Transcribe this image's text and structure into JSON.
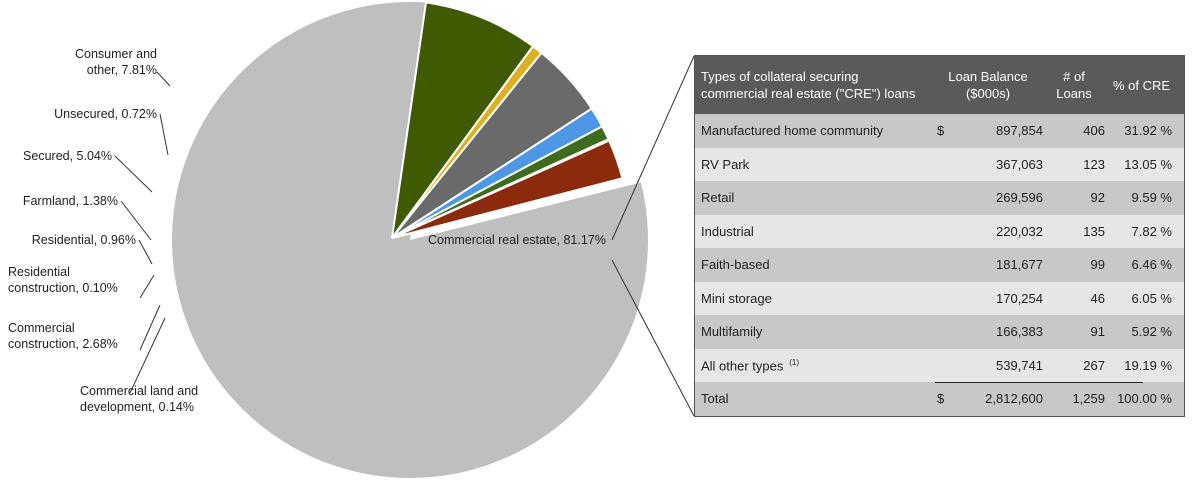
{
  "chart_data": [
    {
      "type": "pie",
      "title": "",
      "slices": [
        {
          "label": "Commercial real estate, 81.17%",
          "value": 81.17,
          "color": "#bfbfbf",
          "exploded": false
        },
        {
          "label": "Consumer and\nother, 7.81%",
          "value": 7.81,
          "color": "#3f5a00",
          "exploded": true
        },
        {
          "label": "Unsecured, 0.72%",
          "value": 0.72,
          "color": "#dcb022",
          "exploded": true
        },
        {
          "label": "Secured, 5.04%",
          "value": 5.04,
          "color": "#6a6a6a",
          "exploded": true
        },
        {
          "label": "Farmland, 1.38%",
          "value": 1.38,
          "color": "#4c97e6",
          "exploded": true
        },
        {
          "label": "Residential, 0.96%",
          "value": 0.96,
          "color": "#3f6b1e",
          "exploded": true
        },
        {
          "label": "Residential\nconstruction, 0.10%",
          "value": 0.1,
          "color": "#e6b0b0",
          "exploded": true
        },
        {
          "label": "Commercial\nconstruction, 2.68%",
          "value": 2.68,
          "color": "#8c2a0c",
          "exploded": true
        },
        {
          "label": "Commercial land and\ndevelopment, 0.14%",
          "value": 0.14,
          "color": "#e8c24a",
          "exploded": true
        }
      ]
    },
    {
      "type": "table",
      "columns": [
        "Types of collateral securing commercial real estate (\"CRE\") loans",
        "Loan Balance ($000s)",
        "# of Loans",
        "% of CRE"
      ],
      "rows": [
        {
          "type": "Manufactured home community",
          "dollar": "$",
          "balance": "897,854",
          "loans": "406",
          "pct": "31.92 %"
        },
        {
          "type": "RV Park",
          "dollar": "",
          "balance": "367,063",
          "loans": "123",
          "pct": "13.05 %"
        },
        {
          "type": "Retail",
          "dollar": "",
          "balance": "269,596",
          "loans": "92",
          "pct": "9.59 %"
        },
        {
          "type": "Industrial",
          "dollar": "",
          "balance": "220,032",
          "loans": "135",
          "pct": "7.82 %"
        },
        {
          "type": "Faith-based",
          "dollar": "",
          "balance": "181,677",
          "loans": "99",
          "pct": "6.46 %"
        },
        {
          "type": "Mini storage",
          "dollar": "",
          "balance": "170,254",
          "loans": "46",
          "pct": "6.05 %"
        },
        {
          "type": "Multifamily",
          "dollar": "",
          "balance": "166,383",
          "loans": "91",
          "pct": "5.92 %"
        },
        {
          "type": "All other types",
          "footnote": "(1)",
          "dollar": "",
          "balance": "539,741",
          "loans": "267",
          "pct": "19.19 %"
        }
      ],
      "total": {
        "type": "Total",
        "dollar": "$",
        "balance": "2,812,600",
        "loans": "1,259",
        "pct": "100.00 %"
      }
    }
  ],
  "header": {
    "type_l1": "Types of collateral securing",
    "type_l2": "commercial real estate (\"CRE\") loans",
    "bal_l1": "Loan Balance",
    "bal_l2": "($000s)",
    "num_l1": "# of",
    "num_l2": "Loans",
    "pct": "% of CRE"
  }
}
